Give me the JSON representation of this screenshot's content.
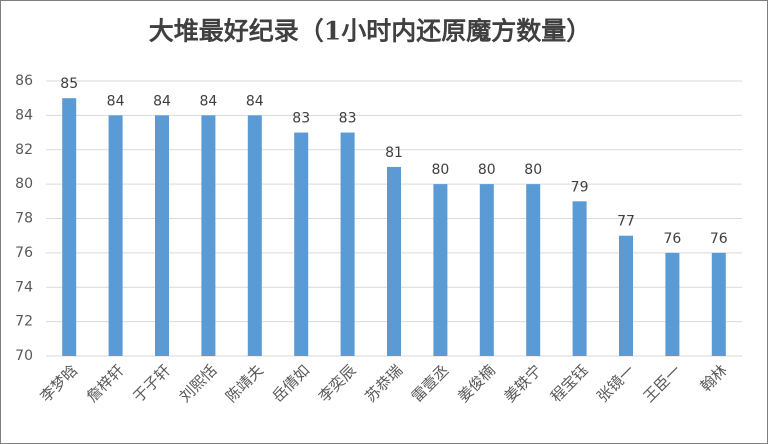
{
  "chart_data": {
    "type": "bar",
    "title": "大堆最好纪录（1小时内还原魔方数量）",
    "categories": [
      "李梦晗",
      "詹梓轩",
      "于子轩",
      "刘熙恬",
      "陈靖夫",
      "岳倩如",
      "李奕辰",
      "苏恭瑞",
      "雷壹丞",
      "姜俊楠",
      "姜轶宁",
      "程宝钰",
      "张镜一",
      "王臣一",
      "翰林"
    ],
    "values": [
      85,
      84,
      84,
      84,
      84,
      83,
      83,
      81,
      80,
      80,
      80,
      79,
      77,
      76,
      76
    ],
    "color": "#5b9bd5",
    "ylim": [
      70,
      86
    ],
    "yticks": [
      70,
      72,
      74,
      76,
      78,
      80,
      82,
      84,
      86
    ],
    "grid": true
  }
}
